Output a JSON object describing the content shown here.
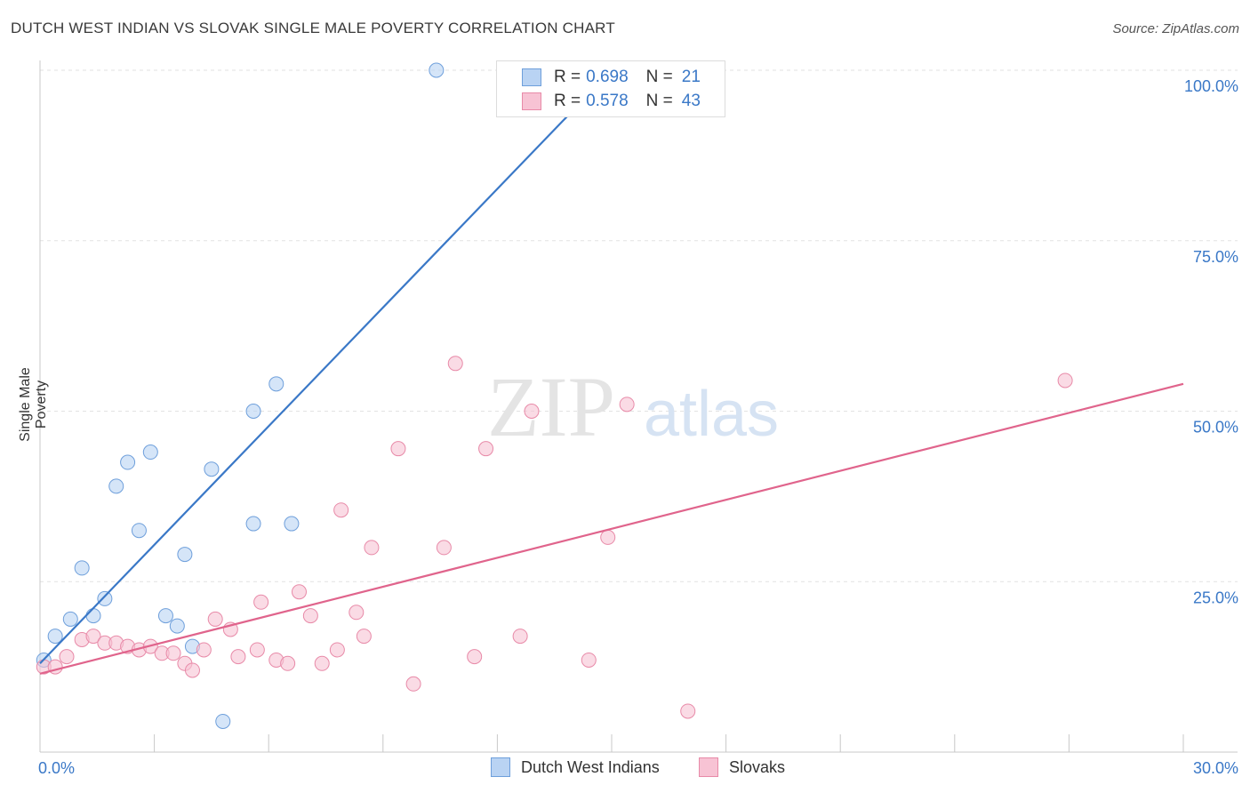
{
  "title": "DUTCH WEST INDIAN VS SLOVAK SINGLE MALE POVERTY CORRELATION CHART",
  "source": "Source: ZipAtlas.com",
  "watermark": {
    "zip": "ZIP",
    "atlas": "atlas"
  },
  "legend": {
    "rows": [
      {
        "r_label": "R =",
        "r_value": "0.698",
        "n_label": "N =",
        "n_value": "21",
        "fill": "#b9d3f3",
        "stroke": "#6e9fdb"
      },
      {
        "r_label": "R =",
        "r_value": "0.578",
        "n_label": "N =",
        "n_value": "43",
        "fill": "#f7c3d4",
        "stroke": "#e88aa8"
      }
    ]
  },
  "bottom_legend": [
    {
      "label": "Dutch West Indians",
      "fill": "#b9d3f3",
      "stroke": "#6e9fdb"
    },
    {
      "label": "Slovaks",
      "fill": "#f7c3d4",
      "stroke": "#e88aa8"
    }
  ],
  "chart_data": {
    "type": "scatter",
    "ylabel": "Single Male Poverty",
    "xlim": [
      0,
      30
    ],
    "ylim": [
      0,
      100
    ],
    "x_tick_labels": [
      "0.0%",
      "30.0%"
    ],
    "y_tick_labels": [
      "25.0%",
      "50.0%",
      "75.0%",
      "100.0%"
    ],
    "y_tick_values": [
      25,
      50,
      75,
      100
    ],
    "grid": true,
    "series": [
      {
        "name": "Dutch West Indians",
        "color": "#6e9fdb",
        "fill": "#b9d3f3",
        "line_color": "#3a78c7",
        "trend": {
          "x": [
            0.0,
            15.0
          ],
          "y": [
            13.0,
            100.0
          ]
        },
        "points": [
          {
            "x": 0.1,
            "y": 13.5
          },
          {
            "x": 0.4,
            "y": 17.0
          },
          {
            "x": 0.8,
            "y": 19.5
          },
          {
            "x": 1.1,
            "y": 27.0
          },
          {
            "x": 1.4,
            "y": 20.0
          },
          {
            "x": 1.7,
            "y": 22.5
          },
          {
            "x": 2.0,
            "y": 39.0
          },
          {
            "x": 2.3,
            "y": 42.5
          },
          {
            "x": 2.6,
            "y": 32.5
          },
          {
            "x": 2.9,
            "y": 44.0
          },
          {
            "x": 3.3,
            "y": 20.0
          },
          {
            "x": 3.6,
            "y": 18.5
          },
          {
            "x": 3.8,
            "y": 29.0
          },
          {
            "x": 4.0,
            "y": 15.5
          },
          {
            "x": 4.5,
            "y": 41.5
          },
          {
            "x": 4.8,
            "y": 4.5
          },
          {
            "x": 5.6,
            "y": 50.0
          },
          {
            "x": 5.6,
            "y": 33.5
          },
          {
            "x": 6.2,
            "y": 54.0
          },
          {
            "x": 6.6,
            "y": 33.5
          },
          {
            "x": 10.4,
            "y": 100.0
          }
        ]
      },
      {
        "name": "Slovaks",
        "color": "#e88aa8",
        "fill": "#f7c3d4",
        "line_color": "#e0648c",
        "trend": {
          "x": [
            0.0,
            30.0
          ],
          "y": [
            11.5,
            54.0
          ]
        },
        "points": [
          {
            "x": 0.1,
            "y": 12.5
          },
          {
            "x": 0.4,
            "y": 12.5
          },
          {
            "x": 0.7,
            "y": 14.0
          },
          {
            "x": 1.1,
            "y": 16.5
          },
          {
            "x": 1.4,
            "y": 17.0
          },
          {
            "x": 1.7,
            "y": 16.0
          },
          {
            "x": 2.0,
            "y": 16.0
          },
          {
            "x": 2.3,
            "y": 15.5
          },
          {
            "x": 2.6,
            "y": 15.0
          },
          {
            "x": 2.9,
            "y": 15.5
          },
          {
            "x": 3.2,
            "y": 14.5
          },
          {
            "x": 3.5,
            "y": 14.5
          },
          {
            "x": 3.8,
            "y": 13.0
          },
          {
            "x": 4.0,
            "y": 12.0
          },
          {
            "x": 4.3,
            "y": 15.0
          },
          {
            "x": 4.6,
            "y": 19.5
          },
          {
            "x": 5.0,
            "y": 18.0
          },
          {
            "x": 5.2,
            "y": 14.0
          },
          {
            "x": 5.7,
            "y": 15.0
          },
          {
            "x": 5.8,
            "y": 22.0
          },
          {
            "x": 6.2,
            "y": 13.5
          },
          {
            "x": 6.5,
            "y": 13.0
          },
          {
            "x": 6.8,
            "y": 23.5
          },
          {
            "x": 7.1,
            "y": 20.0
          },
          {
            "x": 7.4,
            "y": 13.0
          },
          {
            "x": 7.8,
            "y": 15.0
          },
          {
            "x": 7.9,
            "y": 35.5
          },
          {
            "x": 8.3,
            "y": 20.5
          },
          {
            "x": 8.5,
            "y": 17.0
          },
          {
            "x": 8.7,
            "y": 30.0
          },
          {
            "x": 9.4,
            "y": 44.5
          },
          {
            "x": 9.8,
            "y": 10.0
          },
          {
            "x": 10.6,
            "y": 30.0
          },
          {
            "x": 10.9,
            "y": 57.0
          },
          {
            "x": 11.4,
            "y": 14.0
          },
          {
            "x": 11.7,
            "y": 44.5
          },
          {
            "x": 12.6,
            "y": 17.0
          },
          {
            "x": 12.9,
            "y": 50.0
          },
          {
            "x": 14.4,
            "y": 13.5
          },
          {
            "x": 14.9,
            "y": 31.5
          },
          {
            "x": 15.4,
            "y": 51.0
          },
          {
            "x": 17.0,
            "y": 6.0
          },
          {
            "x": 26.9,
            "y": 54.5
          }
        ]
      }
    ]
  }
}
